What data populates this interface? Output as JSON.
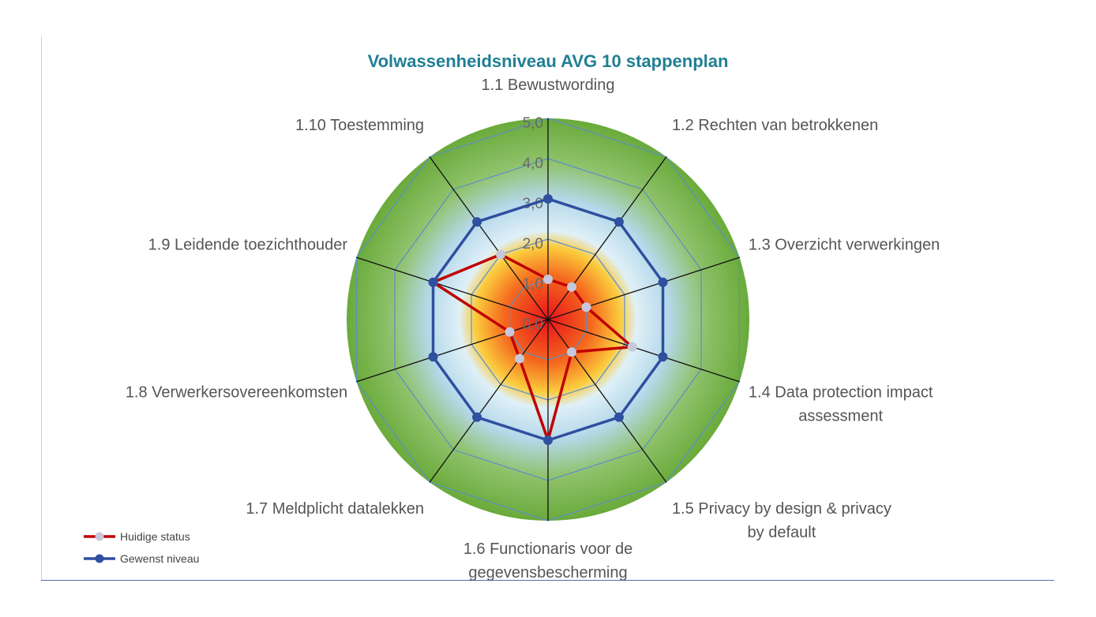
{
  "chart_data": {
    "type": "radar",
    "title": "Volwassenheidsniveau AVG 10 stappenplan",
    "categories": [
      "1.1 Bewustwording",
      "1.2 Rechten van betrokkenen",
      "1.3 Overzicht verwerkingen",
      "1.4 Data protection impact|assessment",
      "1.5 Privacy by design & privacy|by default",
      "1.6 Functionaris voor de|gegevensbescherming",
      "1.7 Meldplicht datalekken",
      "1.8 Verwerkersovereenkomsten",
      "1.9 Leidende toezichthouder",
      "1.10 Toestemming"
    ],
    "tick_labels": [
      "0,0",
      "1,0",
      "2,0",
      "3,0",
      "4,0",
      "5,0"
    ],
    "rlim": [
      0,
      5
    ],
    "series": [
      {
        "name": "Huidige status",
        "color": "#c00000",
        "marker_color": "#c8c8dc",
        "values": [
          1,
          1,
          1,
          2.2,
          1,
          3,
          1.2,
          1,
          3,
          2
        ]
      },
      {
        "name": "Gewenst niveau",
        "color": "#2f4f9f",
        "marker_color": "#2f4f9f",
        "values": [
          3,
          3,
          3,
          3,
          3,
          3,
          3,
          3,
          3,
          3
        ]
      }
    ],
    "legend": "bottom-left",
    "grid": true
  }
}
